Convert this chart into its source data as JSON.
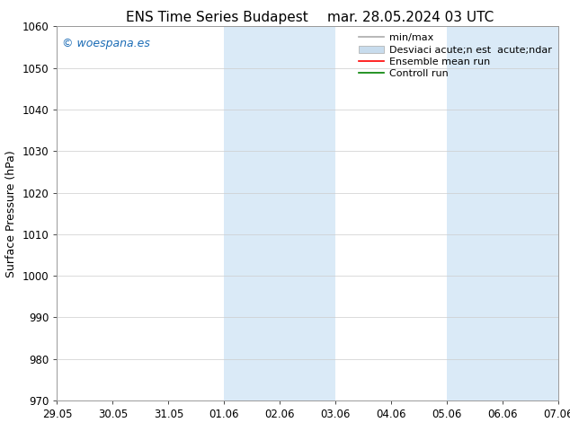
{
  "title_left": "ENS Time Series Budapest",
  "title_right": "mar. 28.05.2024 03 UTC",
  "ylabel": "Surface Pressure (hPa)",
  "ylim": [
    970,
    1060
  ],
  "yticks": [
    970,
    980,
    990,
    1000,
    1010,
    1020,
    1030,
    1040,
    1050,
    1060
  ],
  "xtick_labels": [
    "29.05",
    "30.05",
    "31.05",
    "01.06",
    "02.06",
    "03.06",
    "04.06",
    "05.06",
    "06.06",
    "07.06"
  ],
  "xtick_positions": [
    0,
    1,
    2,
    3,
    4,
    5,
    6,
    7,
    8,
    9
  ],
  "shaded_bands": [
    {
      "xmin": 3.0,
      "xmax": 5.0
    },
    {
      "xmin": 7.0,
      "xmax": 9.0
    }
  ],
  "shade_color": "#daeaf7",
  "watermark": "© woespana.es",
  "watermark_color": "#1a6bb5",
  "legend_labels": [
    "min/max",
    "Desviaci acute;n est  acute;ndar",
    "Ensemble mean run",
    "Controll run"
  ],
  "legend_colors": [
    "#aaaaaa",
    "#c8dced",
    "red",
    "green"
  ],
  "background_color": "#ffffff",
  "grid_color": "#cccccc",
  "title_fontsize": 11,
  "ylabel_fontsize": 9,
  "tick_fontsize": 8.5,
  "legend_fontsize": 8,
  "watermark_fontsize": 9
}
